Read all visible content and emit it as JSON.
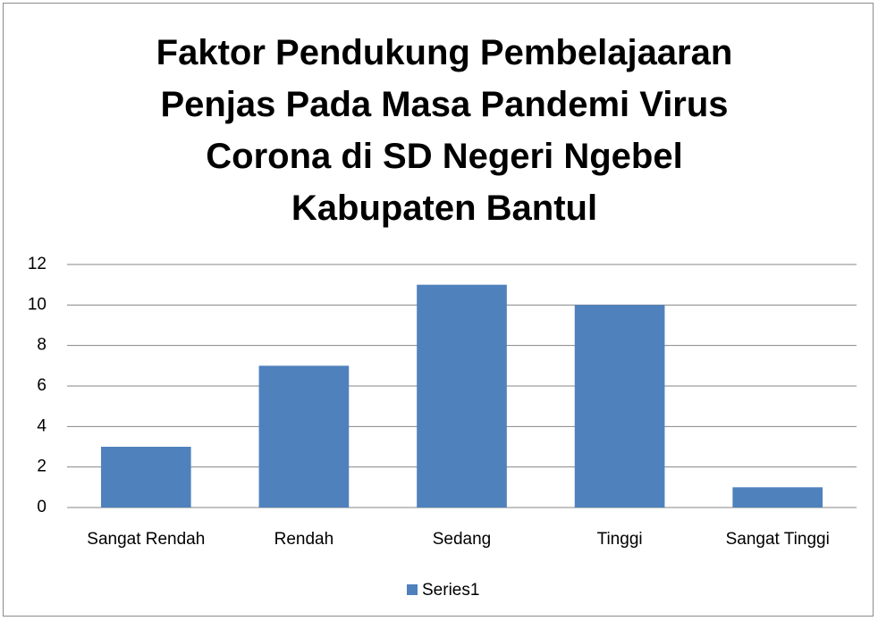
{
  "chart_data": {
    "type": "bar",
    "title": "Faktor Pendukung Pembelajaaran Penjas Pada Masa Pandemi Virus Corona di SD Negeri Ngebel Kabupaten Bantul",
    "categories": [
      "Sangat Rendah",
      "Rendah",
      "Sedang",
      "Tinggi",
      "Sangat Tinggi"
    ],
    "series": [
      {
        "name": "Series1",
        "color": "#4f81bd",
        "values": [
          3,
          7,
          11,
          10,
          1
        ]
      }
    ],
    "ylim": [
      0,
      12
    ],
    "yticks": [
      0,
      2,
      4,
      6,
      8,
      10,
      12
    ],
    "grid": true,
    "legend": "bottom"
  }
}
